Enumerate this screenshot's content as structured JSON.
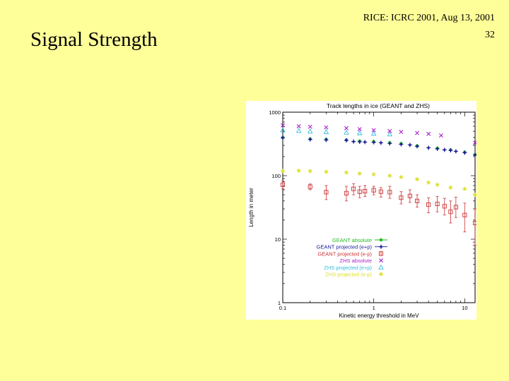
{
  "slide": {
    "header": "RICE: ICRC 2001, Aug 13, 2001",
    "page_number": "32",
    "title": "Signal Strength"
  },
  "chart_data": {
    "type": "scatter",
    "title": "Track lengths in ice (GEANT and ZHS)",
    "xlabel": "Kinetic energy threshold in MeV",
    "ylabel": "Length in meter",
    "xscale": "log",
    "yscale": "log",
    "xlim": [
      0.1,
      13
    ],
    "ylim": [
      1,
      1000
    ],
    "xticks": [
      {
        "value": 0.1,
        "label": "0.1"
      },
      {
        "value": 1,
        "label": "1"
      },
      {
        "value": 10,
        "label": "10"
      }
    ],
    "yticks": [
      {
        "value": 1,
        "label": "1"
      },
      {
        "value": 10,
        "label": "10"
      },
      {
        "value": 100,
        "label": "100"
      },
      {
        "value": 1000,
        "label": "1000"
      }
    ],
    "legend_position": "bottom-center",
    "series": [
      {
        "name": "GEANT absolute",
        "color": "#22bb22",
        "marker": "dot-line",
        "points": [
          [
            0.1,
            400
          ],
          [
            0.2,
            380
          ],
          [
            0.3,
            375
          ],
          [
            0.5,
            365
          ],
          [
            0.7,
            350
          ],
          [
            1.0,
            345
          ],
          [
            1.5,
            330
          ],
          [
            2.0,
            320
          ],
          [
            3.0,
            295
          ],
          [
            5.0,
            270
          ],
          [
            7.0,
            255
          ],
          [
            10.0,
            235
          ],
          [
            13.0,
            215
          ]
        ]
      },
      {
        "name": "GEANT projected (e+p)",
        "color": "#1a1a99",
        "marker": "plus",
        "points": [
          [
            0.1,
            395
          ],
          [
            0.2,
            372
          ],
          [
            0.3,
            365
          ],
          [
            0.5,
            360
          ],
          [
            0.6,
            345
          ],
          [
            0.7,
            342
          ],
          [
            0.8,
            338
          ],
          [
            1.0,
            335
          ],
          [
            1.2,
            330
          ],
          [
            1.5,
            322
          ],
          [
            2.0,
            312
          ],
          [
            2.5,
            305
          ],
          [
            3.0,
            290
          ],
          [
            4.0,
            275
          ],
          [
            5.0,
            265
          ],
          [
            6.0,
            255
          ],
          [
            7.0,
            250
          ],
          [
            8.0,
            242
          ],
          [
            10.0,
            230
          ],
          [
            13.0,
            212
          ]
        ]
      },
      {
        "name": "GEANT projected (e-p)",
        "color": "#cc3333",
        "marker": "square",
        "points": [
          [
            0.1,
            72,
            62,
            82
          ],
          [
            0.2,
            67,
            60,
            74
          ],
          [
            0.3,
            55,
            42,
            70
          ],
          [
            0.5,
            53,
            40,
            68
          ],
          [
            0.6,
            62,
            50,
            75
          ],
          [
            0.7,
            56,
            45,
            68
          ],
          [
            0.8,
            57,
            47,
            70
          ],
          [
            1.0,
            59,
            50,
            68
          ],
          [
            1.2,
            56,
            46,
            65
          ],
          [
            1.5,
            55,
            44,
            68
          ],
          [
            2.0,
            45,
            36,
            56
          ],
          [
            2.5,
            48,
            38,
            60
          ],
          [
            3.0,
            40,
            32,
            50
          ],
          [
            4.0,
            35,
            26,
            45
          ],
          [
            5.0,
            36,
            27,
            47
          ],
          [
            6.0,
            33,
            24,
            44
          ],
          [
            7.0,
            27,
            18,
            40
          ],
          [
            8.0,
            32,
            22,
            46
          ],
          [
            10.0,
            24,
            13,
            37
          ],
          [
            13.0,
            18,
            8,
            30
          ]
        ]
      },
      {
        "name": "ZHS absolute",
        "color": "#aa22cc",
        "marker": "x",
        "points": [
          [
            0.1,
            620
          ],
          [
            0.15,
            600
          ],
          [
            0.2,
            590
          ],
          [
            0.3,
            575
          ],
          [
            0.5,
            560
          ],
          [
            0.7,
            540
          ],
          [
            1.0,
            520
          ],
          [
            1.5,
            505
          ],
          [
            2.0,
            490
          ],
          [
            3.0,
            470
          ],
          [
            4.0,
            455
          ],
          [
            5.5,
            430
          ],
          [
            13.0,
            330
          ]
        ]
      },
      {
        "name": "ZHS projected (e+p)",
        "color": "#33bbdd",
        "marker": "triangle",
        "points": [
          [
            0.1,
            520
          ],
          [
            0.15,
            510
          ],
          [
            0.2,
            500
          ],
          [
            0.3,
            490
          ],
          [
            0.5,
            480
          ],
          [
            0.7,
            470
          ],
          [
            1.0,
            460
          ],
          [
            1.5,
            450
          ]
        ]
      },
      {
        "name": "ZHS projected (e-p)",
        "color": "#dddd22",
        "marker": "star",
        "points": [
          [
            0.1,
            118
          ],
          [
            0.15,
            120
          ],
          [
            0.2,
            118
          ],
          [
            0.3,
            115
          ],
          [
            0.5,
            112
          ],
          [
            0.7,
            108
          ],
          [
            1.0,
            105
          ],
          [
            1.5,
            100
          ],
          [
            2.0,
            95
          ],
          [
            3.0,
            88
          ],
          [
            4.0,
            78
          ],
          [
            5.0,
            72
          ],
          [
            7.0,
            65
          ],
          [
            10.0,
            62
          ],
          [
            13.0,
            50
          ]
        ]
      }
    ]
  }
}
